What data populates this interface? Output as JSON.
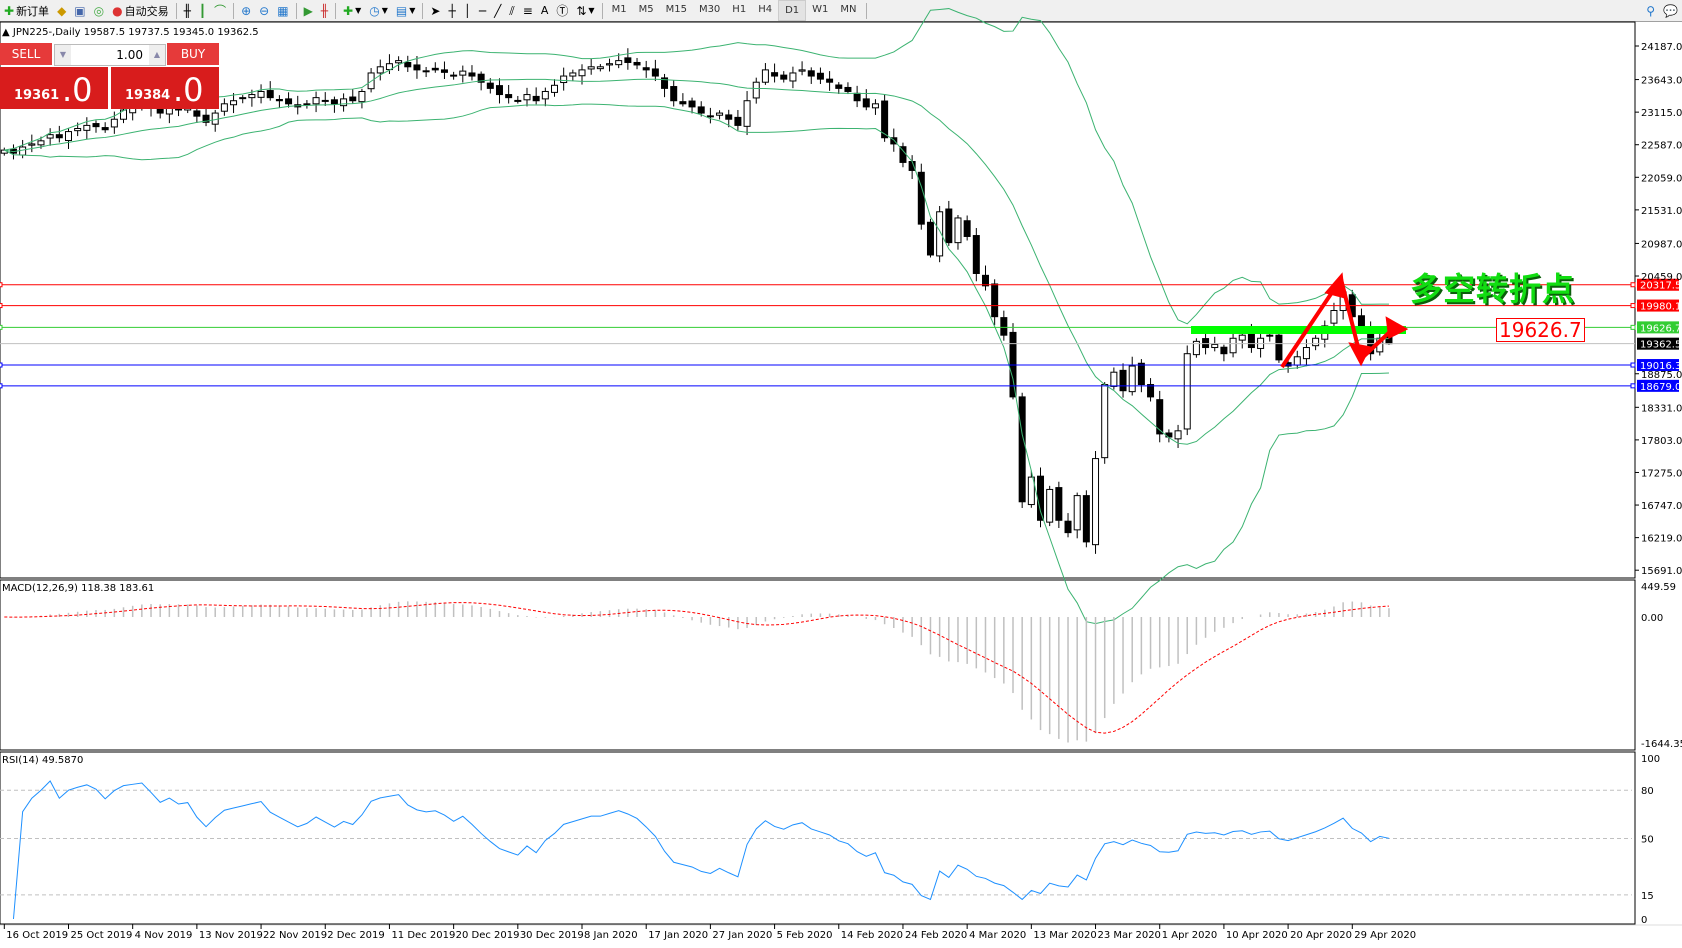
{
  "toolbar": {
    "new_order": "新订单",
    "auto_trading": "自动交易",
    "text_tool": "A",
    "timeframes": [
      "M1",
      "M5",
      "M15",
      "M30",
      "H1",
      "H4",
      "D1",
      "W1",
      "MN"
    ],
    "active_timeframe": "D1"
  },
  "chart_header": {
    "symbol": "JPN225-,Daily",
    "ohlc": "19587.5 19737.5 19345.0 19362.5"
  },
  "trade_panel": {
    "sell_label": "SELL",
    "buy_label": "BUY",
    "lots": "1.00",
    "sell_price_main": "19361",
    "sell_price_big": ".0",
    "buy_price_main": "19384",
    "buy_price_big": ".0"
  },
  "annotations": {
    "title": "多空转折点",
    "level_box": "19626.7"
  },
  "colors": {
    "bull_body": "#ffffff",
    "bear_body": "#000000",
    "bands": "#3cb371",
    "resistance": "#ff0000",
    "pivot": "#32cd32",
    "support": "#0000ff",
    "macd_hist": "#c0c0c0",
    "macd_signal": "#ff0000",
    "rsi": "#1e90ff",
    "arrow": "#ff0000"
  },
  "chart_data": {
    "type": "candlestick",
    "symbol": "JPN225-",
    "timeframe": "Daily",
    "last_bar": {
      "open": 19587.5,
      "high": 19737.5,
      "low": 19345.0,
      "close": 19362.5
    },
    "closes": [
      22500,
      22450,
      22550,
      22600,
      22650,
      22750,
      22700,
      22800,
      22850,
      22900,
      22880,
      22830,
      23000,
      23150,
      23200,
      23250,
      23180,
      23100,
      23200,
      23150,
      23180,
      23050,
      22950,
      23100,
      23250,
      23300,
      23350,
      23400,
      23450,
      23350,
      23300,
      23250,
      23200,
      23250,
      23350,
      23300,
      23250,
      23330,
      23300,
      23450,
      23750,
      23850,
      23900,
      23950,
      23850,
      23800,
      23780,
      23800,
      23760,
      23700,
      23780,
      23700,
      23600,
      23500,
      23400,
      23350,
      23300,
      23400,
      23300,
      23450,
      23550,
      23700,
      23750,
      23800,
      23850,
      23850,
      23900,
      23950,
      23920,
      23880,
      23800,
      23700,
      23500,
      23300,
      23250,
      23200,
      23100,
      23050,
      23100,
      23000,
      22900,
      23300,
      23600,
      23800,
      23700,
      23650,
      23750,
      23800,
      23700,
      23650,
      23600,
      23500,
      23450,
      23300,
      23200,
      23250,
      22700,
      22600,
      22300,
      22170,
      21300,
      20800,
      21500,
      21000,
      21400,
      21100,
      20500,
      20300,
      19800,
      19500,
      18500,
      16800,
      17200,
      16500,
      17000,
      16500,
      16300,
      16900,
      16150,
      17500,
      18700,
      18900,
      18600,
      19000,
      18700,
      18500,
      17900,
      17850,
      17950,
      19200,
      19400,
      19300,
      19350,
      19200,
      19450,
      19500,
      19300,
      19450,
      19500,
      19100,
      19000,
      19150,
      19300,
      19450,
      19650,
      19900,
      20200,
      19800,
      19600,
      19200,
      19450,
      19362.5
    ],
    "price_axis_ticks": [
      "24187.0",
      "23643.0",
      "23115.0",
      "22587.0",
      "22059.0",
      "21531.0",
      "20987.0",
      "20459.0",
      "18875.0",
      "18331.0",
      "17803.0",
      "17275.0",
      "16747.0",
      "16219.0",
      "15691.0"
    ],
    "ylim": [
      15691.0,
      24187.0
    ],
    "date_labels": [
      "16 Oct 2019",
      "25 Oct 2019",
      "4 Nov 2019",
      "13 Nov 2019",
      "22 Nov 2019",
      "2 Dec 2019",
      "11 Dec 2019",
      "20 Dec 2019",
      "30 Dec 2019",
      "8 Jan 2020",
      "17 Jan 2020",
      "27 Jan 2020",
      "5 Feb 2020",
      "14 Feb 2020",
      "24 Feb 2020",
      "4 Mar 2020",
      "13 Mar 2020",
      "23 Mar 2020",
      "1 Apr 2020",
      "10 Apr 2020",
      "20 Apr 2020",
      "29 Apr 2020"
    ],
    "horizontal_lines": [
      {
        "price": 20317.5,
        "label": "20317.5",
        "kind": "resistance"
      },
      {
        "price": 19980.1,
        "label": "19980.1",
        "kind": "resistance"
      },
      {
        "price": 19626.7,
        "label": "19626.7",
        "kind": "pivot"
      },
      {
        "price": 19362.5,
        "label": "19362.5",
        "kind": "current"
      },
      {
        "price": 19016.3,
        "label": "19016.3",
        "kind": "support"
      },
      {
        "price": 18679.0,
        "label": "18679.0",
        "kind": "support"
      }
    ],
    "bollinger": {
      "period": 20,
      "deviation": 2
    },
    "macd": {
      "label": "MACD(12,26,9) 118.38 183.61",
      "ylim": [
        -1644.35,
        449.59
      ],
      "ticks": [
        "449.59",
        "0.00",
        "-1644.35"
      ]
    },
    "rsi": {
      "label": "RSI(14) 49.5870",
      "ylim": [
        0,
        100
      ],
      "ticks": [
        "100",
        "80",
        "50",
        "15",
        "0"
      ],
      "levels": [
        80,
        50,
        15
      ]
    }
  }
}
